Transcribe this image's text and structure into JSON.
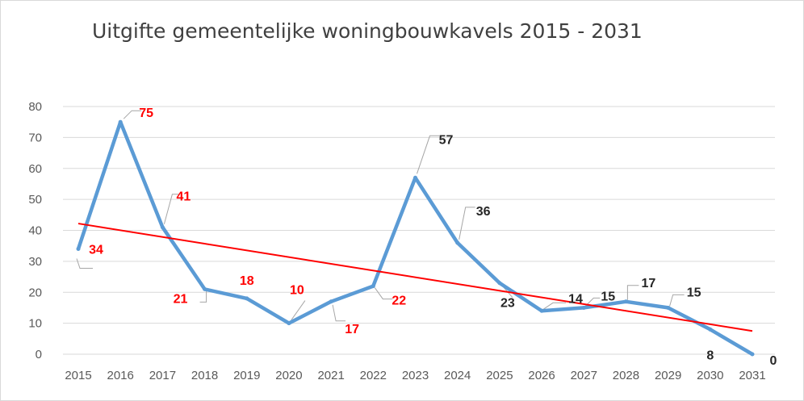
{
  "chart_data": {
    "type": "line",
    "title": "Uitgifte gemeentelijke woningbouwkavels 2015 - 2031",
    "xlabel": "",
    "ylabel": "",
    "x": [
      "2015",
      "2016",
      "2017",
      "2018",
      "2019",
      "2020",
      "2021",
      "2022",
      "2023",
      "2024",
      "2025",
      "2026",
      "2027",
      "2028",
      "2029",
      "2030",
      "2031"
    ],
    "series": [
      {
        "values": [
          34,
          75,
          41,
          21,
          18,
          10,
          17,
          22,
          57,
          36,
          23,
          14,
          15,
          17,
          15,
          8,
          0
        ],
        "color": "#5b9bd5",
        "data_labels": [
          "34",
          "75",
          "41",
          "21",
          "18",
          "10",
          "17",
          "22",
          "57",
          "36",
          "23",
          "14",
          "15",
          "17",
          "15",
          "8",
          "0"
        ],
        "label_colors": [
          "#ff0000",
          "#ff0000",
          "#ff0000",
          "#ff0000",
          "#ff0000",
          "#ff0000",
          "#ff0000",
          "#ff0000",
          "#262626",
          "#262626",
          "#262626",
          "#262626",
          "#262626",
          "#262626",
          "#262626",
          "#262626",
          "#262626"
        ]
      }
    ],
    "trendline": {
      "type": "linear",
      "color": "#ff0000",
      "start": 42.2,
      "end": 7.5
    },
    "ylim": [
      0,
      80
    ],
    "yticks": [
      "0",
      "10",
      "20",
      "30",
      "40",
      "50",
      "60",
      "70",
      "80"
    ],
    "grid": true,
    "legend": "none"
  }
}
